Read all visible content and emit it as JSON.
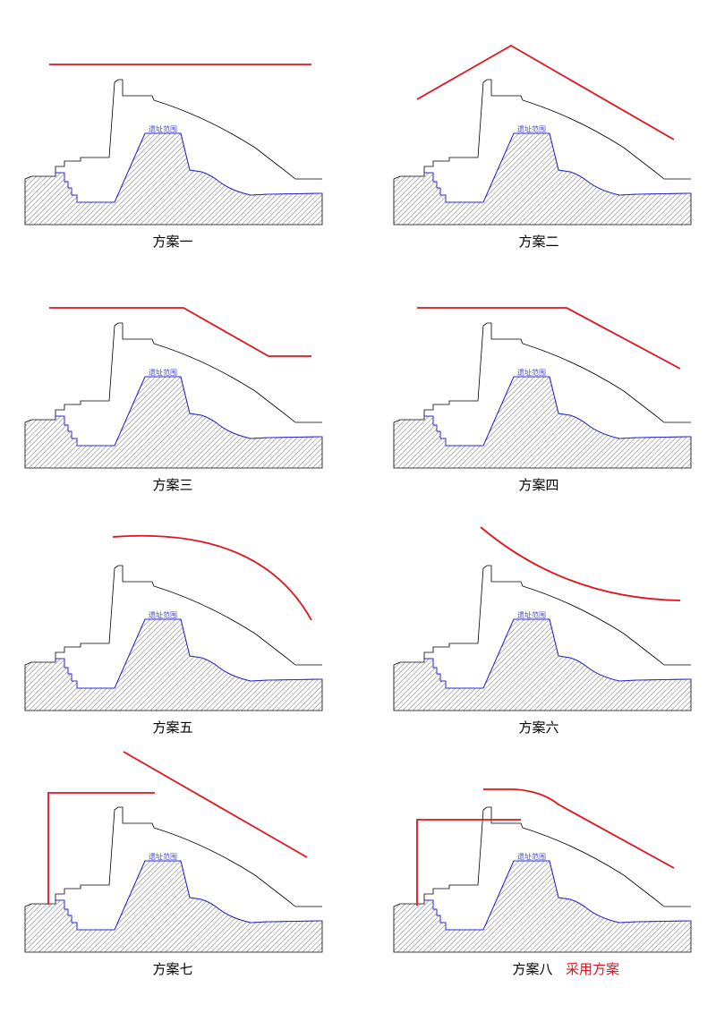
{
  "panels": [
    {
      "caption": "方案一",
      "site_label": "遗址范围"
    },
    {
      "caption": "方案二",
      "site_label": "遗址范围"
    },
    {
      "caption": "方案三",
      "site_label": "遗址范围"
    },
    {
      "caption": "方案四",
      "site_label": "遗址范围"
    },
    {
      "caption": "方案五",
      "site_label": "遗址范围"
    },
    {
      "caption": "方案六",
      "site_label": "遗址范围"
    },
    {
      "caption": "方案七",
      "site_label": "遗址范围"
    },
    {
      "caption": "方案八",
      "site_label": "遗址范围"
    }
  ],
  "adopted_label": "采用方案"
}
